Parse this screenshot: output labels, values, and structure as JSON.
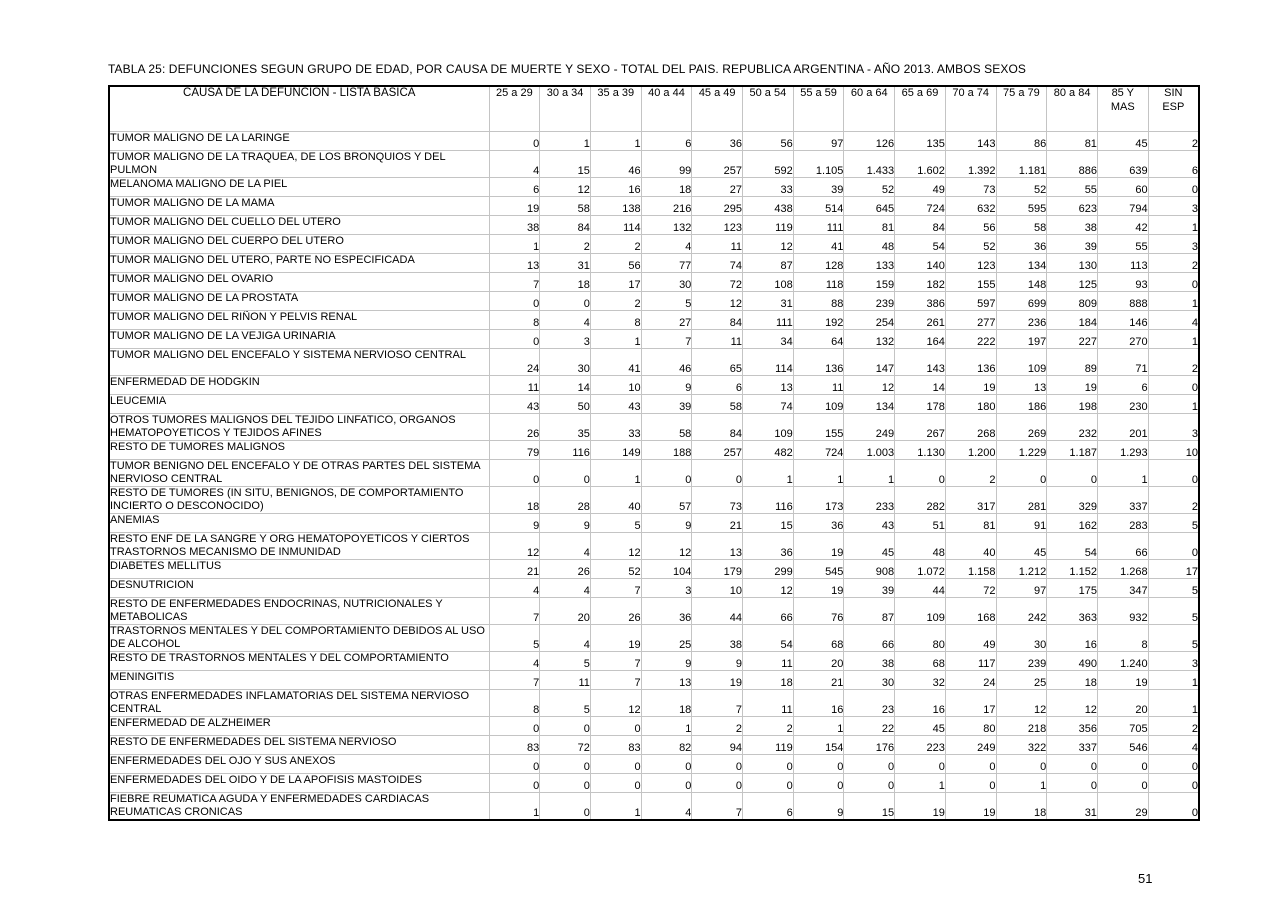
{
  "title": "TABLA 25: DEFUNCIONES SEGUN GRUPO DE EDAD, POR CAUSA DE MUERTE Y SEXO - TOTAL DEL PAIS. REPUBLICA ARGENTINA - AÑO 2013. AMBOS SEXOS",
  "page_number": "51",
  "table": {
    "cause_header": "CAUSA DE LA DEFUNCION - LISTA BASICA",
    "age_headers": [
      "25 a 29",
      "30 a 34",
      "35 a 39",
      "40 a 44",
      "45 a 49",
      "50 a 54",
      "55 a 59",
      "60 a 64",
      "65 a 69",
      "70 a 74",
      "75 a 79",
      "80 a 84",
      "85 Y\nMAS",
      "SIN\nESP"
    ],
    "rows": [
      {
        "cause": "TUMOR MALIGNO DE LA LARINGE",
        "tall": false,
        "values": [
          "0",
          "1",
          "1",
          "6",
          "36",
          "56",
          "97",
          "126",
          "135",
          "143",
          "86",
          "81",
          "45",
          "2"
        ]
      },
      {
        "cause": "TUMOR MALIGNO DE LA TRAQUEA,  DE LOS BRONQUIOS Y DEL PULMON",
        "tall": true,
        "values": [
          "4",
          "15",
          "46",
          "99",
          "257",
          "592",
          "1.105",
          "1.433",
          "1.602",
          "1.392",
          "1.181",
          "886",
          "639",
          "6"
        ]
      },
      {
        "cause": "MELANOMA MALIGNO DE LA PIEL",
        "tall": false,
        "values": [
          "6",
          "12",
          "16",
          "18",
          "27",
          "33",
          "39",
          "52",
          "49",
          "73",
          "52",
          "55",
          "60",
          "0"
        ]
      },
      {
        "cause": "TUMOR MALIGNO DE LA MAMA",
        "tall": false,
        "values": [
          "19",
          "58",
          "138",
          "216",
          "295",
          "438",
          "514",
          "645",
          "724",
          "632",
          "595",
          "623",
          "794",
          "3"
        ]
      },
      {
        "cause": "TUMOR MALIGNO DEL CUELLO DEL UTERO",
        "tall": false,
        "values": [
          "38",
          "84",
          "114",
          "132",
          "123",
          "119",
          "111",
          "81",
          "84",
          "56",
          "58",
          "38",
          "42",
          "1"
        ]
      },
      {
        "cause": "TUMOR MALIGNO DEL CUERPO DEL UTERO",
        "tall": false,
        "values": [
          "1",
          "2",
          "2",
          "4",
          "11",
          "12",
          "41",
          "48",
          "54",
          "52",
          "36",
          "39",
          "55",
          "3"
        ]
      },
      {
        "cause": "TUMOR MALIGNO DEL UTERO, PARTE NO ESPECIFICADA",
        "tall": false,
        "values": [
          "13",
          "31",
          "56",
          "77",
          "74",
          "87",
          "128",
          "133",
          "140",
          "123",
          "134",
          "130",
          "113",
          "2"
        ]
      },
      {
        "cause": "TUMOR MALIGNO DEL OVARIO",
        "tall": false,
        "values": [
          "7",
          "18",
          "17",
          "30",
          "72",
          "108",
          "118",
          "159",
          "182",
          "155",
          "148",
          "125",
          "93",
          "0"
        ]
      },
      {
        "cause": "TUMOR MALIGNO DE LA PROSTATA",
        "tall": false,
        "values": [
          "0",
          "0",
          "2",
          "5",
          "12",
          "31",
          "88",
          "239",
          "386",
          "597",
          "699",
          "809",
          "888",
          "1"
        ]
      },
      {
        "cause": "TUMOR MALIGNO DEL RIÑON Y PELVIS RENAL",
        "tall": false,
        "values": [
          "8",
          "4",
          "8",
          "27",
          "84",
          "111",
          "192",
          "254",
          "261",
          "277",
          "236",
          "184",
          "146",
          "4"
        ]
      },
      {
        "cause": "TUMOR MALIGNO DE LA VEJIGA URINARIA",
        "tall": false,
        "values": [
          "0",
          "3",
          "1",
          "7",
          "11",
          "34",
          "64",
          "132",
          "164",
          "222",
          "197",
          "227",
          "270",
          "1"
        ]
      },
      {
        "cause": "TUMOR MALIGNO DEL ENCEFALO Y SISTEMA NERVIOSO CENTRAL",
        "tall": true,
        "values": [
          "24",
          "30",
          "41",
          "46",
          "65",
          "114",
          "136",
          "147",
          "143",
          "136",
          "109",
          "89",
          "71",
          "2"
        ]
      },
      {
        "cause": "ENFERMEDAD DE HODGKIN",
        "tall": false,
        "values": [
          "11",
          "14",
          "10",
          "9",
          "6",
          "13",
          "11",
          "12",
          "14",
          "19",
          "13",
          "19",
          "6",
          "0"
        ]
      },
      {
        "cause": "LEUCEMIA",
        "tall": false,
        "values": [
          "43",
          "50",
          "43",
          "39",
          "58",
          "74",
          "109",
          "134",
          "178",
          "180",
          "186",
          "198",
          "230",
          "1"
        ]
      },
      {
        "cause": "OTROS TUMORES MALIGNOS DEL TEJIDO LINFATICO, ORGANOS HEMATOPOYETICOS Y TEJIDOS AFINES",
        "tall": true,
        "values": [
          "26",
          "35",
          "33",
          "58",
          "84",
          "109",
          "155",
          "249",
          "267",
          "268",
          "269",
          "232",
          "201",
          "3"
        ]
      },
      {
        "cause": "RESTO DE TUMORES MALIGNOS",
        "tall": false,
        "values": [
          "79",
          "116",
          "149",
          "188",
          "257",
          "482",
          "724",
          "1.003",
          "1.130",
          "1.200",
          "1.229",
          "1.187",
          "1.293",
          "10"
        ]
      },
      {
        "cause": "TUMOR BENIGNO DEL ENCEFALO Y DE OTRAS PARTES DEL SISTEMA NERVIOSO CENTRAL",
        "tall": true,
        "values": [
          "0",
          "0",
          "1",
          "0",
          "0",
          "1",
          "1",
          "1",
          "0",
          "2",
          "0",
          "0",
          "1",
          "0"
        ]
      },
      {
        "cause": "RESTO DE TUMORES (IN SITU, BENIGNOS, DE COMPORTAMIENTO INCIERTO O DESCONOCIDO)",
        "tall": true,
        "values": [
          "18",
          "28",
          "40",
          "57",
          "73",
          "116",
          "173",
          "233",
          "282",
          "317",
          "281",
          "329",
          "337",
          "2"
        ]
      },
      {
        "cause": "ANEMIAS",
        "tall": false,
        "values": [
          "9",
          "9",
          "5",
          "9",
          "21",
          "15",
          "36",
          "43",
          "51",
          "81",
          "91",
          "162",
          "283",
          "5"
        ]
      },
      {
        "cause": "RESTO ENF DE LA SANGRE Y ORG HEMATOPOYETICOS Y CIERTOS TRASTORNOS MECANISMO DE  INMUNIDAD",
        "tall": true,
        "values": [
          "12",
          "4",
          "12",
          "12",
          "13",
          "36",
          "19",
          "45",
          "48",
          "40",
          "45",
          "54",
          "66",
          "0"
        ]
      },
      {
        "cause": "DIABETES MELLITUS",
        "tall": false,
        "values": [
          "21",
          "26",
          "52",
          "104",
          "179",
          "299",
          "545",
          "908",
          "1.072",
          "1.158",
          "1.212",
          "1.152",
          "1.268",
          "17"
        ]
      },
      {
        "cause": "DESNUTRICION",
        "tall": false,
        "values": [
          "4",
          "4",
          "7",
          "3",
          "10",
          "12",
          "19",
          "39",
          "44",
          "72",
          "97",
          "175",
          "347",
          "5"
        ]
      },
      {
        "cause": "RESTO DE ENFERMEDADES ENDOCRINAS, NUTRICIONALES Y METABOLICAS",
        "tall": true,
        "values": [
          "7",
          "20",
          "26",
          "36",
          "44",
          "66",
          "76",
          "87",
          "109",
          "168",
          "242",
          "363",
          "932",
          "5"
        ]
      },
      {
        "cause": "TRASTORNOS MENTALES Y DEL COMPORTAMIENTO DEBIDOS AL USO DE ALCOHOL",
        "tall": true,
        "values": [
          "5",
          "4",
          "19",
          "25",
          "38",
          "54",
          "68",
          "66",
          "80",
          "49",
          "30",
          "16",
          "8",
          "5"
        ]
      },
      {
        "cause": "RESTO DE TRASTORNOS MENTALES Y DEL COMPORTAMIENTO",
        "tall": false,
        "values": [
          "4",
          "5",
          "7",
          "9",
          "9",
          "11",
          "20",
          "38",
          "68",
          "117",
          "239",
          "490",
          "1.240",
          "3"
        ]
      },
      {
        "cause": "MENINGITIS",
        "tall": false,
        "values": [
          "7",
          "11",
          "7",
          "13",
          "19",
          "18",
          "21",
          "30",
          "32",
          "24",
          "25",
          "18",
          "19",
          "1"
        ]
      },
      {
        "cause": "OTRAS ENFERMEDADES INFLAMATORIAS DEL SISTEMA NERVIOSO CENTRAL",
        "tall": true,
        "values": [
          "8",
          "5",
          "12",
          "18",
          "7",
          "11",
          "16",
          "23",
          "16",
          "17",
          "12",
          "12",
          "20",
          "1"
        ]
      },
      {
        "cause": "ENFERMEDAD DE ALZHEIMER",
        "tall": false,
        "values": [
          "0",
          "0",
          "0",
          "1",
          "2",
          "2",
          "1",
          "22",
          "45",
          "80",
          "218",
          "356",
          "705",
          "2"
        ]
      },
      {
        "cause": "RESTO DE ENFERMEDADES DEL SISTEMA NERVIOSO",
        "tall": false,
        "values": [
          "83",
          "72",
          "83",
          "82",
          "94",
          "119",
          "154",
          "176",
          "223",
          "249",
          "322",
          "337",
          "546",
          "4"
        ]
      },
      {
        "cause": "ENFERMEDADES DEL OJO Y SUS ANEXOS",
        "tall": false,
        "values": [
          "0",
          "0",
          "0",
          "0",
          "0",
          "0",
          "0",
          "0",
          "0",
          "0",
          "0",
          "0",
          "0",
          "0"
        ]
      },
      {
        "cause": "ENFERMEDADES DEL OIDO Y DE LA APOFISIS MASTOIDES",
        "tall": false,
        "values": [
          "0",
          "0",
          "0",
          "0",
          "0",
          "0",
          "0",
          "0",
          "1",
          "0",
          "1",
          "0",
          "0",
          "0"
        ]
      },
      {
        "cause": "FIEBRE REUMATICA AGUDA Y ENFERMEDADES CARDIACAS REUMATICAS CRONICAS",
        "tall": true,
        "values": [
          "1",
          "0",
          "1",
          "4",
          "7",
          "6",
          "9",
          "15",
          "19",
          "19",
          "18",
          "31",
          "29",
          "0"
        ]
      }
    ]
  }
}
